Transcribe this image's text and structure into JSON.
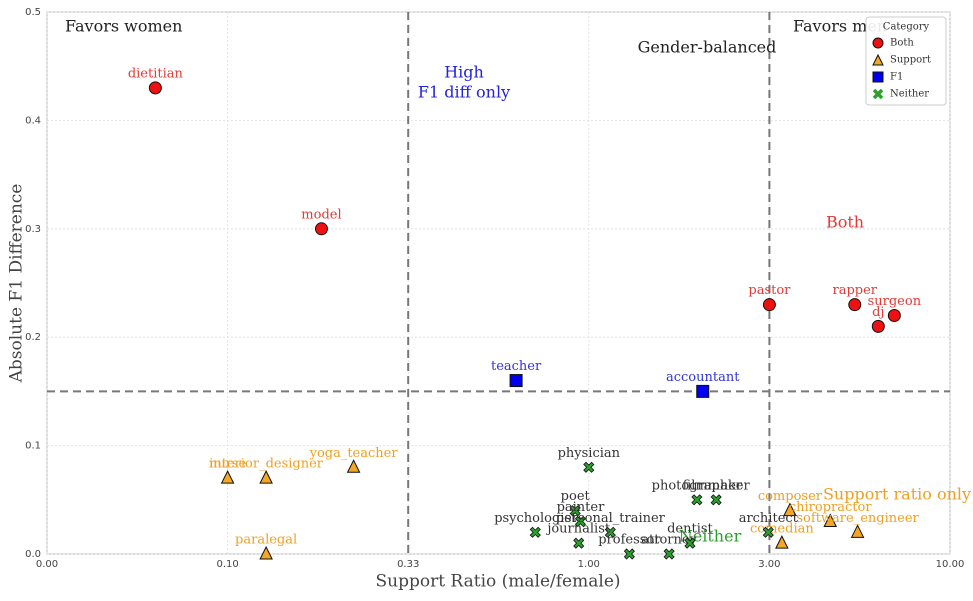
{
  "chart_data": {
    "type": "scatter",
    "x_label": "Support Ratio (male/female)",
    "y_label": "Absolute F1 Difference",
    "xscale": "piecewise-log",
    "xlim": [
      0,
      10
    ],
    "xticks": [
      {
        "value": 0,
        "label": "0.00"
      },
      {
        "value": 0.1,
        "label": "0.10"
      },
      {
        "value": 0.33,
        "label": "0.33"
      },
      {
        "value": 1,
        "label": "1.00"
      },
      {
        "value": 3,
        "label": "3.00"
      },
      {
        "value": 10,
        "label": "10.00"
      }
    ],
    "ylim": [
      0,
      0.5
    ],
    "yticks": [
      {
        "value": 0,
        "label": "0.0"
      },
      0.1,
      0.2,
      0.3,
      0.4,
      0.5
    ],
    "grid": true,
    "vlines": [
      0.33,
      3
    ],
    "hline": 0.15,
    "legend_title": "Category",
    "legend_position": "upper right",
    "series": [
      {
        "name": "Both",
        "marker": "circle",
        "color": "#ee1111",
        "label_color": "#e53935",
        "labels": [
          "dietitian",
          "model",
          "pastor",
          "rapper",
          "dj",
          "surgeon"
        ],
        "x": [
          0.06,
          0.186,
          3.0,
          5.3,
          6.2,
          6.9
        ],
        "values": [
          0.43,
          0.3,
          0.23,
          0.23,
          0.21,
          0.22
        ]
      },
      {
        "name": "Support",
        "marker": "triangle",
        "color": "#f5a623",
        "label_color": "#f0a020",
        "labels": [
          "nurse",
          "interior_designer",
          "yoga_teacher",
          "paralegal",
          "composer",
          "chiropractor",
          "software_engineer",
          "comedian"
        ],
        "x": [
          0.1,
          0.129,
          0.23,
          0.129,
          3.44,
          4.5,
          5.4,
          3.26
        ],
        "values": [
          0.07,
          0.07,
          0.08,
          0.0,
          0.04,
          0.03,
          0.02,
          0.01
        ]
      },
      {
        "name": "F1",
        "marker": "square",
        "color": "#0000ee",
        "label_color": "#3333dd",
        "labels": [
          "teacher",
          "accountant"
        ],
        "x": [
          0.64,
          2.0
        ],
        "values": [
          0.16,
          0.15
        ]
      },
      {
        "name": "Neither",
        "marker": "x",
        "color": "#2ca02c",
        "label_color": "#333333",
        "labels": [
          "physician",
          "photographer",
          "filmmaker",
          "poet",
          "painter",
          "personal_trainer",
          "psychologist",
          "journalist",
          "professor",
          "attorney",
          "dentist",
          "architect"
        ],
        "x": [
          1.0,
          1.93,
          2.17,
          0.92,
          0.95,
          1.14,
          0.72,
          0.94,
          1.28,
          1.63,
          1.85,
          2.98
        ],
        "values": [
          0.08,
          0.05,
          0.05,
          0.04,
          0.03,
          0.02,
          0.02,
          0.01,
          0.0,
          0.0,
          0.01,
          0.02
        ]
      }
    ],
    "annotations": [
      {
        "text": [
          "Favors women"
        ],
        "color": "#222222"
      },
      {
        "text": [
          "Gender-balanced"
        ],
        "color": "#222222"
      },
      {
        "text": [
          "Favors men"
        ],
        "color": "#222222"
      },
      {
        "text": [
          "High",
          "F1 diff only"
        ],
        "color": "#2222dd"
      },
      {
        "text": [
          "Both"
        ],
        "color": "#e53935"
      },
      {
        "text": [
          "Support ratio only"
        ],
        "color": "#f0a020"
      },
      {
        "text": [
          "Neither"
        ],
        "color": "#2ca02c"
      }
    ]
  }
}
